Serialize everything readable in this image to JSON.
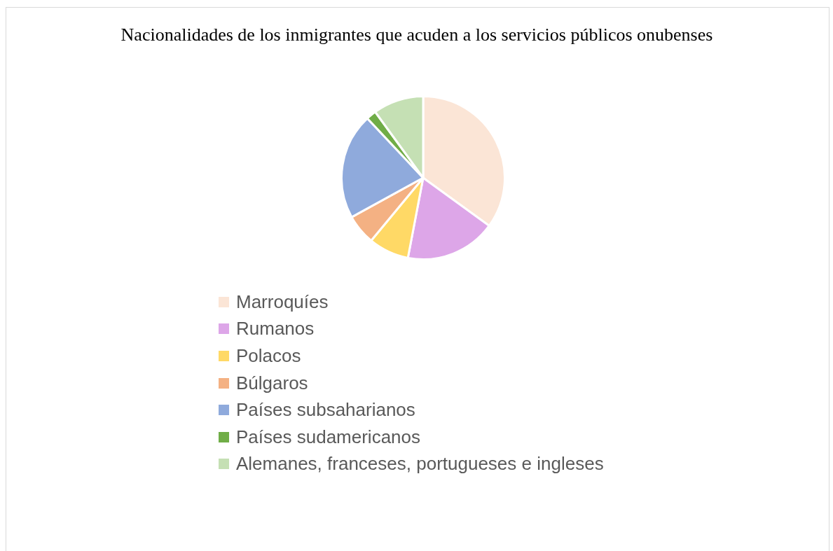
{
  "chart_data": {
    "type": "pie",
    "title": "Nacionalidades de los inmigrantes que acuden a los servicios públicos onubenses",
    "categories": [
      "Marroquíes",
      "Rumanos",
      "Polacos",
      "Búlgaros",
      "Países subsaharianos",
      "Países sudamericanos",
      "Alemanes, franceses, portugueses e ingleses"
    ],
    "values": [
      35,
      18,
      8,
      6,
      21,
      2,
      10
    ],
    "colors": [
      "#fbe5d6",
      "#dda6e8",
      "#ffd966",
      "#f4b183",
      "#8faadc",
      "#70ad47",
      "#c5e0b4"
    ],
    "legend": "bottom"
  }
}
